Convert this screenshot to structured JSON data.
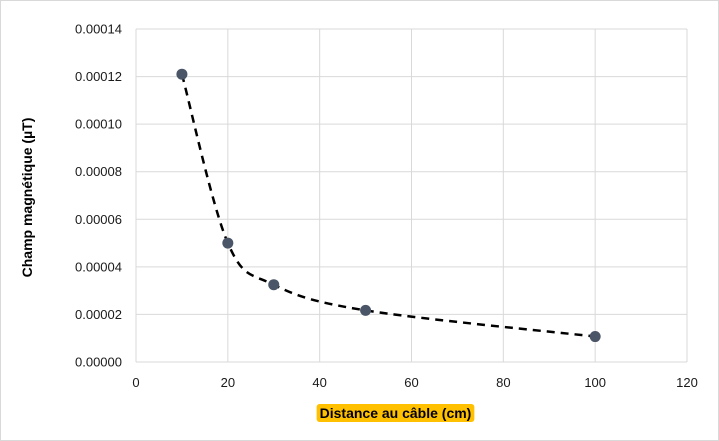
{
  "chart_data": {
    "type": "scatter",
    "title": "",
    "xlabel": "Distance au câble (cm)",
    "ylabel": "Champ magnétique (µT)",
    "xlim": [
      0,
      120
    ],
    "ylim": [
      0,
      0.00014
    ],
    "x_ticks": [
      "0",
      "20",
      "40",
      "60",
      "80",
      "100",
      "120"
    ],
    "y_ticks": [
      "0.00000",
      "0.00002",
      "0.00004",
      "0.00006",
      "0.00008",
      "0.00010",
      "0.00012",
      "0.00014"
    ],
    "grid": true,
    "legend": "none",
    "series": [
      {
        "x": [
          10,
          20,
          30,
          50,
          100
        ],
        "y": [
          0.000121,
          5e-05,
          3.25e-05,
          2.17e-05,
          1.07e-05
        ],
        "marker_color": "#4a5567",
        "trendline": "dashed black"
      }
    ],
    "xlabel_highlight_color": "#ffc000"
  }
}
